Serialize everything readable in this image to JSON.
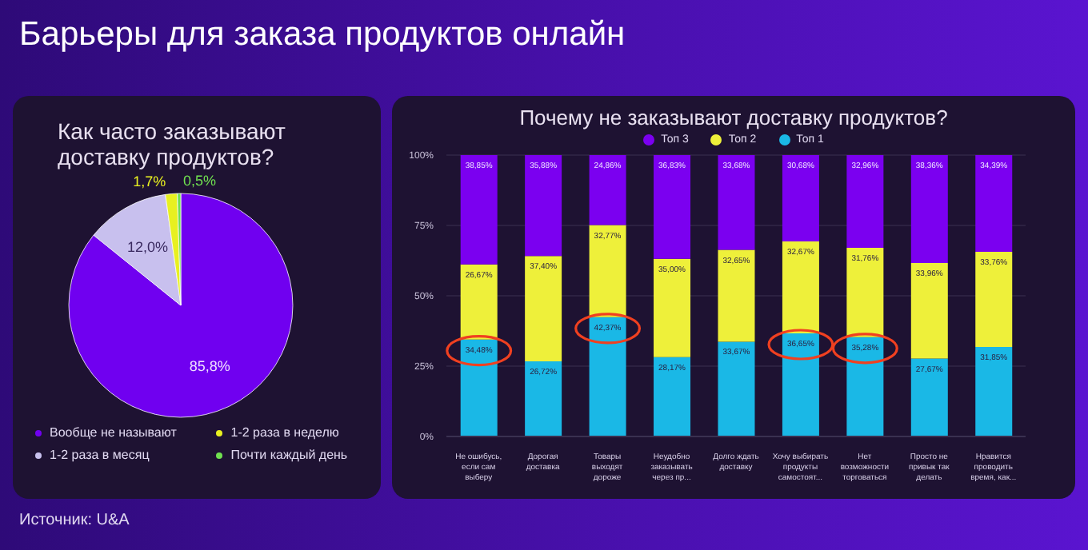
{
  "chart_data": [
    {
      "type": "pie",
      "title": "Как часто заказывают доставку продуктов?",
      "annotations": [
        "Барьеры для заказа продуктов онлайн",
        "Источник: U&A"
      ],
      "categories": [
        "Вообще не называют",
        "1-2 раза в месяц",
        "1-2 раза в неделю",
        "Почти каждый день"
      ],
      "values": [
        85.8,
        12.0,
        1.7,
        0.5
      ],
      "value_labels": [
        "85,8%",
        "12,0%",
        "1,7%",
        "0,5%"
      ],
      "colors": [
        "#7000f0",
        "#c8c0ee",
        "#e8f020",
        "#70e050"
      ],
      "legend": "bottom"
    },
    {
      "type": "bar",
      "stacked": true,
      "title": "Почему не заказывают доставку продуктов?",
      "categories": [
        "Не ошибусь, если сам выберу",
        "Дорогая доставка",
        "Товары выходят дороже",
        "Неудобно заказывать через пр...",
        "Долго ждать доставку",
        "Хочу выбирать продукты самостоят...",
        "Нет возможности торговаться",
        "Просто не привык так делать",
        "Нравится проводить время, как..."
      ],
      "series": [
        {
          "name": "Топ 1",
          "color": "#1ab8e6",
          "values": [
            34.48,
            26.72,
            42.37,
            28.17,
            33.67,
            36.65,
            35.28,
            27.67,
            31.85
          ],
          "value_labels": [
            "34,48%",
            "26,72%",
            "42,37%",
            "28,17%",
            "33,67%",
            "36,65%",
            "35,28%",
            "27,67%",
            "31,85%"
          ]
        },
        {
          "name": "Топ 2",
          "color": "#eef03a",
          "values": [
            26.67,
            37.4,
            32.77,
            35.0,
            32.65,
            32.67,
            31.76,
            33.96,
            33.76
          ],
          "value_labels": [
            "26,67%",
            "37,40%",
            "32,77%",
            "35,00%",
            "32,65%",
            "32,67%",
            "31,76%",
            "33,96%",
            "33,76%"
          ]
        },
        {
          "name": "Топ 3",
          "color": "#7b00f0",
          "values": [
            38.85,
            35.88,
            24.86,
            36.83,
            33.68,
            30.68,
            32.96,
            38.36,
            34.39
          ],
          "value_labels": [
            "38,85%",
            "35,88%",
            "24,86%",
            "36,83%",
            "33,68%",
            "30,68%",
            "32,96%",
            "38,36%",
            "34,39%"
          ]
        }
      ],
      "ylim": [
        0,
        100
      ],
      "yticks": [
        {
          "value": 0,
          "label": "0%"
        },
        {
          "value": 25,
          "label": "25%"
        },
        {
          "value": 50,
          "label": "50%"
        },
        {
          "value": 75,
          "label": "75%"
        },
        {
          "value": 100,
          "label": "100%"
        }
      ],
      "grid": "y",
      "legend": "top"
    }
  ]
}
